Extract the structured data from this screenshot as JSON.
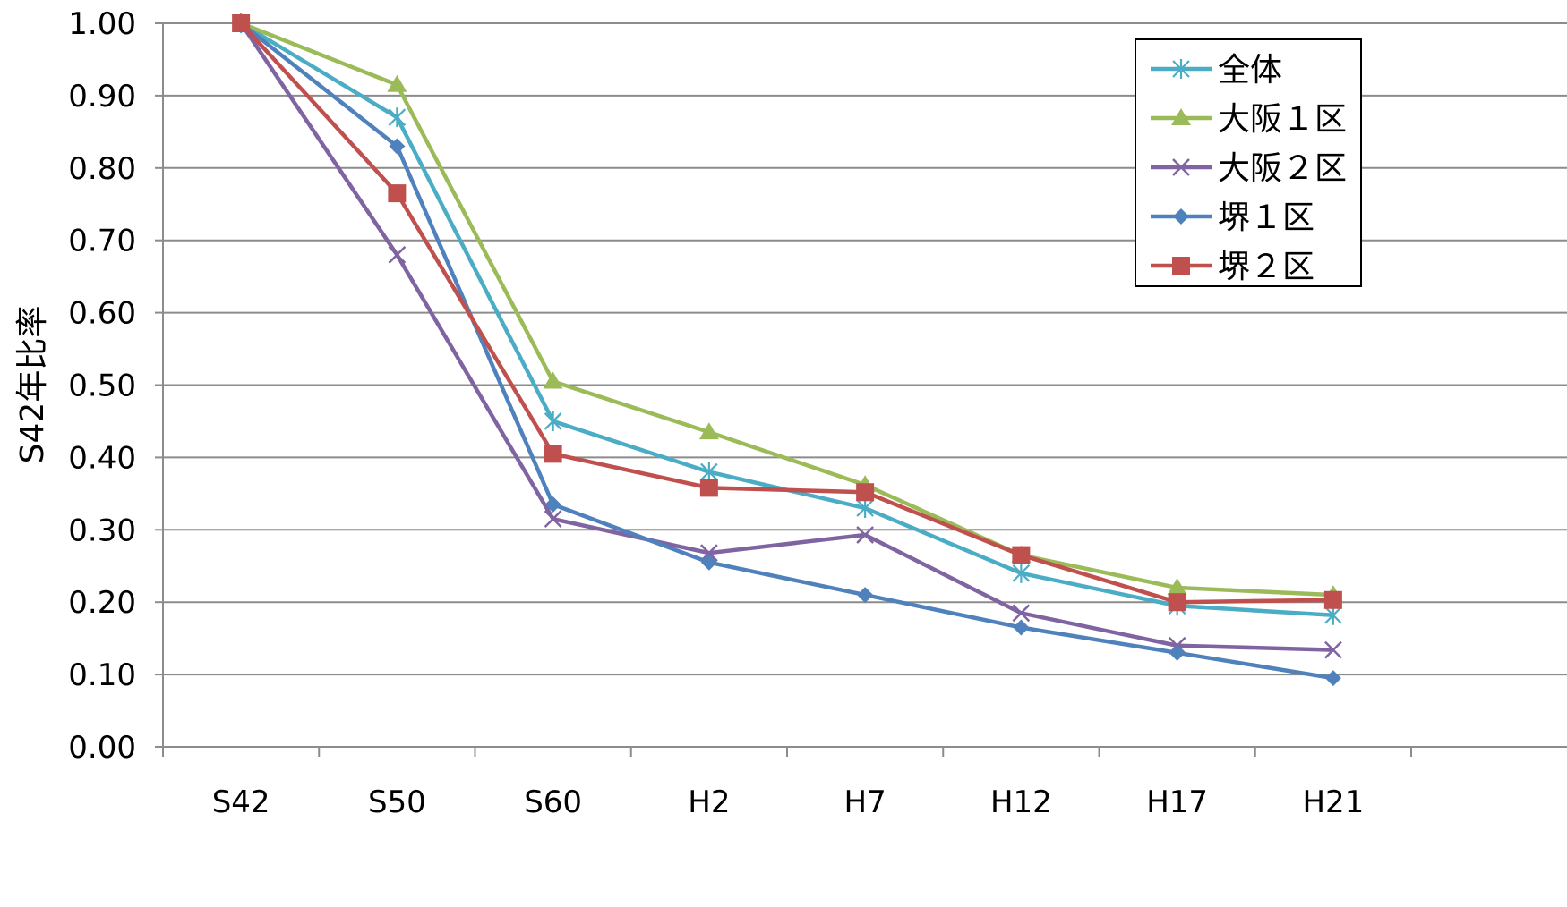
{
  "chart_data": {
    "type": "line",
    "categories": [
      "S42",
      "S50",
      "S60",
      "H2",
      "H7",
      "H12",
      "H17",
      "H21"
    ],
    "ylabel": "S42年比率",
    "ylim": [
      0,
      1
    ],
    "yticks": [
      "0.00",
      "0.10",
      "0.20",
      "0.30",
      "0.40",
      "0.50",
      "0.60",
      "0.70",
      "0.80",
      "0.90",
      "1.00"
    ],
    "grid": true,
    "legend_position": "top-right",
    "series": [
      {
        "name": "全体",
        "color": "#4BACC6",
        "marker": "star",
        "values": [
          1.0,
          0.87,
          0.45,
          0.38,
          0.33,
          0.24,
          0.195,
          0.182
        ]
      },
      {
        "name": "大阪１区",
        "color": "#9BBB59",
        "marker": "triangle",
        "values": [
          1.0,
          0.915,
          0.505,
          0.435,
          0.362,
          0.265,
          0.22,
          0.21
        ]
      },
      {
        "name": "大阪２区",
        "color": "#8064A2",
        "marker": "x",
        "values": [
          1.0,
          0.68,
          0.315,
          0.268,
          0.293,
          0.185,
          0.14,
          0.134
        ]
      },
      {
        "name": "堺１区",
        "color": "#4F81BD",
        "marker": "diamond",
        "values": [
          1.0,
          0.83,
          0.335,
          0.255,
          0.21,
          0.165,
          0.13,
          0.095
        ]
      },
      {
        "name": "堺２区",
        "color": "#C0504D",
        "marker": "square",
        "values": [
          1.0,
          0.765,
          0.405,
          0.358,
          0.352,
          0.265,
          0.2,
          0.203
        ]
      }
    ]
  }
}
